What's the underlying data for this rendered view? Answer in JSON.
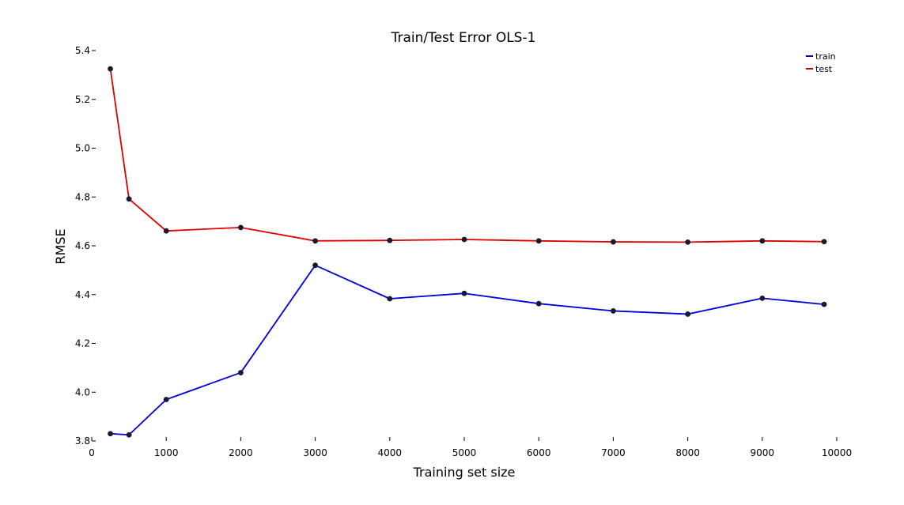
{
  "chart_data": {
    "type": "line",
    "title": "Train/Test Error OLS-1",
    "xlabel": "Training set size",
    "ylabel": "RMSE",
    "xlim": [
      0,
      10000
    ],
    "ylim": [
      3.8,
      5.4
    ],
    "xticks": [
      0,
      1000,
      2000,
      3000,
      4000,
      5000,
      6000,
      7000,
      8000,
      9000,
      10000
    ],
    "yticks": [
      3.8,
      4.0,
      4.2,
      4.4,
      4.6,
      4.8,
      5.0,
      5.2,
      5.4
    ],
    "ytick_labels": [
      "3.8",
      "4.0",
      "4.2",
      "4.4",
      "4.6",
      "4.8",
      "5.0",
      "5.2",
      "5.4"
    ],
    "grid": false,
    "legend_position": "top-right",
    "x": [
      250,
      500,
      1000,
      2000,
      3000,
      4000,
      5000,
      6000,
      7000,
      8000,
      9000,
      9830
    ],
    "series": [
      {
        "name": "train",
        "color": "#0000dd",
        "values": [
          3.83,
          3.825,
          3.97,
          4.08,
          4.52,
          4.383,
          4.405,
          4.363,
          4.333,
          4.32,
          4.385,
          4.36
        ]
      },
      {
        "name": "test",
        "color": "#dd0000",
        "values": [
          5.325,
          4.792,
          4.661,
          4.675,
          4.62,
          4.622,
          4.626,
          4.62,
          4.616,
          4.615,
          4.62,
          4.617
        ]
      }
    ],
    "marker_color": "#1a1a2e"
  }
}
